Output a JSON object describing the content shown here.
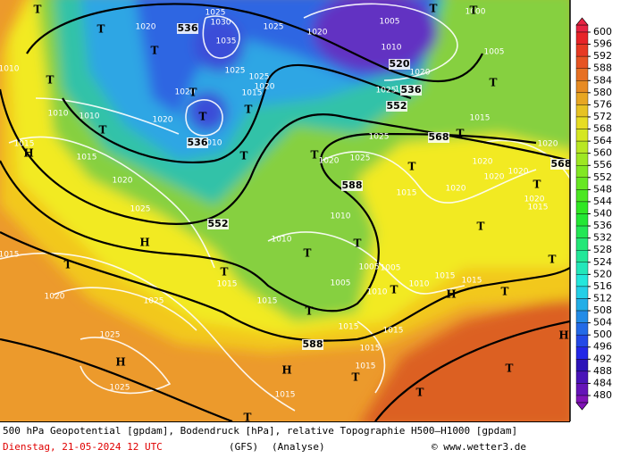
{
  "map": {
    "geopotential_labels": [
      "536",
      "520",
      "536",
      "552",
      "536",
      "568",
      "568",
      "588",
      "552",
      "588"
    ],
    "isobar_labels": [
      "1020",
      "1030",
      "1025",
      "1035",
      "1025",
      "1020",
      "1005",
      "1010",
      "1020",
      "1005",
      "1000",
      "1025",
      "1025",
      "1020",
      "1015",
      "1020",
      "1020",
      "1010",
      "1010",
      "1010",
      "1010",
      "1015",
      "1015",
      "1020",
      "1025",
      "1015",
      "1020",
      "1025",
      "1025",
      "1025",
      "1025",
      "1025",
      "1020",
      "1015",
      "1010",
      "1010",
      "1005",
      "1005",
      "1010",
      "1015",
      "1015",
      "1010",
      "1005",
      "1015",
      "1015",
      "1015",
      "1015",
      "1015",
      "1015",
      "1015",
      "1020",
      "1020",
      "1020",
      "1020",
      "1020",
      "1020",
      "1015",
      "1015",
      "1025",
      "1020"
    ],
    "pressure_centers": [
      "T",
      "T",
      "T",
      "T",
      "T",
      "T",
      "T",
      "T",
      "T",
      "H",
      "T",
      "T",
      "T",
      "T",
      "H",
      "T",
      "T",
      "T",
      "H",
      "H",
      "T",
      "T",
      "T",
      "T",
      "T",
      "T",
      "T",
      "H",
      "T",
      "T",
      "T",
      "T",
      "T",
      "T",
      "H"
    ]
  },
  "colorbar": {
    "ticks": [
      600,
      596,
      592,
      588,
      584,
      580,
      576,
      572,
      568,
      564,
      560,
      556,
      552,
      548,
      544,
      540,
      536,
      532,
      528,
      524,
      520,
      516,
      512,
      508,
      504,
      500,
      496,
      492,
      488,
      484,
      480
    ]
  },
  "footer": {
    "description": "500 hPa Geopotential [gpdam], Bodendruck [hPa], relative Topographie H500–H1000 [gpdam]",
    "date": "Dienstag, 21-05-2024  12 UTC",
    "model": "(GFS)",
    "analysis": "(Analyse)",
    "credit": "© www.wetter3.de"
  }
}
